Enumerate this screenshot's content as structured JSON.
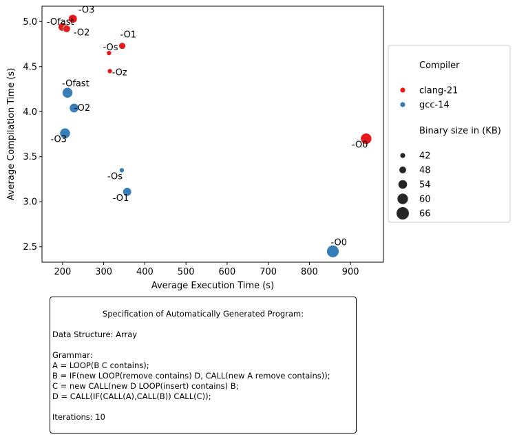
{
  "chart_data": {
    "type": "scatter",
    "xlabel": "Average Execution Time (s)",
    "ylabel": "Average Compilation Time (s)",
    "xlim": [
      150,
      980
    ],
    "ylim": [
      2.33,
      5.17
    ],
    "xticks": [
      200,
      300,
      400,
      500,
      600,
      700,
      800,
      900
    ],
    "yticks": [
      2.5,
      3.0,
      3.5,
      4.0,
      4.5,
      5.0
    ],
    "ytick_labels": [
      "2.5",
      "3.0",
      "3.5",
      "4.0",
      "4.5",
      "5.0"
    ],
    "size_range": [
      42,
      66
    ],
    "series": [
      {
        "name": "clang-21",
        "color": "#e41a1c",
        "points": [
          {
            "label": "-O3",
            "x": 225,
            "y": 5.03,
            "size": 54
          },
          {
            "label": "-Ofast",
            "x": 200,
            "y": 4.94,
            "size": 54
          },
          {
            "label": "-O2",
            "x": 210,
            "y": 4.92,
            "size": 50
          },
          {
            "label": "-O1",
            "x": 345,
            "y": 4.73,
            "size": 48
          },
          {
            "label": "-Os",
            "x": 313,
            "y": 4.65,
            "size": 42
          },
          {
            "label": "-Oz",
            "x": 315,
            "y": 4.45,
            "size": 42
          },
          {
            "label": "-O0",
            "x": 938,
            "y": 3.7,
            "size": 62
          }
        ]
      },
      {
        "name": "gcc-14",
        "color": "#377eb8",
        "points": [
          {
            "label": "-Ofast",
            "x": 212,
            "y": 4.21,
            "size": 60
          },
          {
            "label": "-O2",
            "x": 228,
            "y": 4.04,
            "size": 56
          },
          {
            "label": "-O3",
            "x": 206,
            "y": 3.76,
            "size": 60
          },
          {
            "label": "-Os",
            "x": 344,
            "y": 3.35,
            "size": 42
          },
          {
            "label": "-O1",
            "x": 357,
            "y": 3.11,
            "size": 54
          },
          {
            "label": "-O0",
            "x": 857,
            "y": 2.45,
            "size": 66
          }
        ]
      }
    ],
    "legend": {
      "placement": "right-outside",
      "hue_title": "Compiler",
      "size_title": "Binary size in (KB)",
      "hue_entries": [
        {
          "name": "clang-21",
          "color": "#e41a1c"
        },
        {
          "name": "gcc-14",
          "color": "#377eb8"
        }
      ],
      "size_entries": [
        42,
        48,
        54,
        60,
        66
      ]
    }
  },
  "spec": {
    "title": "Specification of Automatically Generated Program:",
    "data_structure": "Data Structure: Array",
    "grammar_label": "Grammar:",
    "rules": [
      "A = LOOP(B C contains);",
      "B = IF(new LOOP(remove contains) D, CALL(new A remove contains));",
      "C = new CALL(new D LOOP(insert) contains) B;",
      "D = CALL(IF(CALL(A),CALL(B)) CALL(C));"
    ],
    "iterations": "Iterations: 10"
  }
}
